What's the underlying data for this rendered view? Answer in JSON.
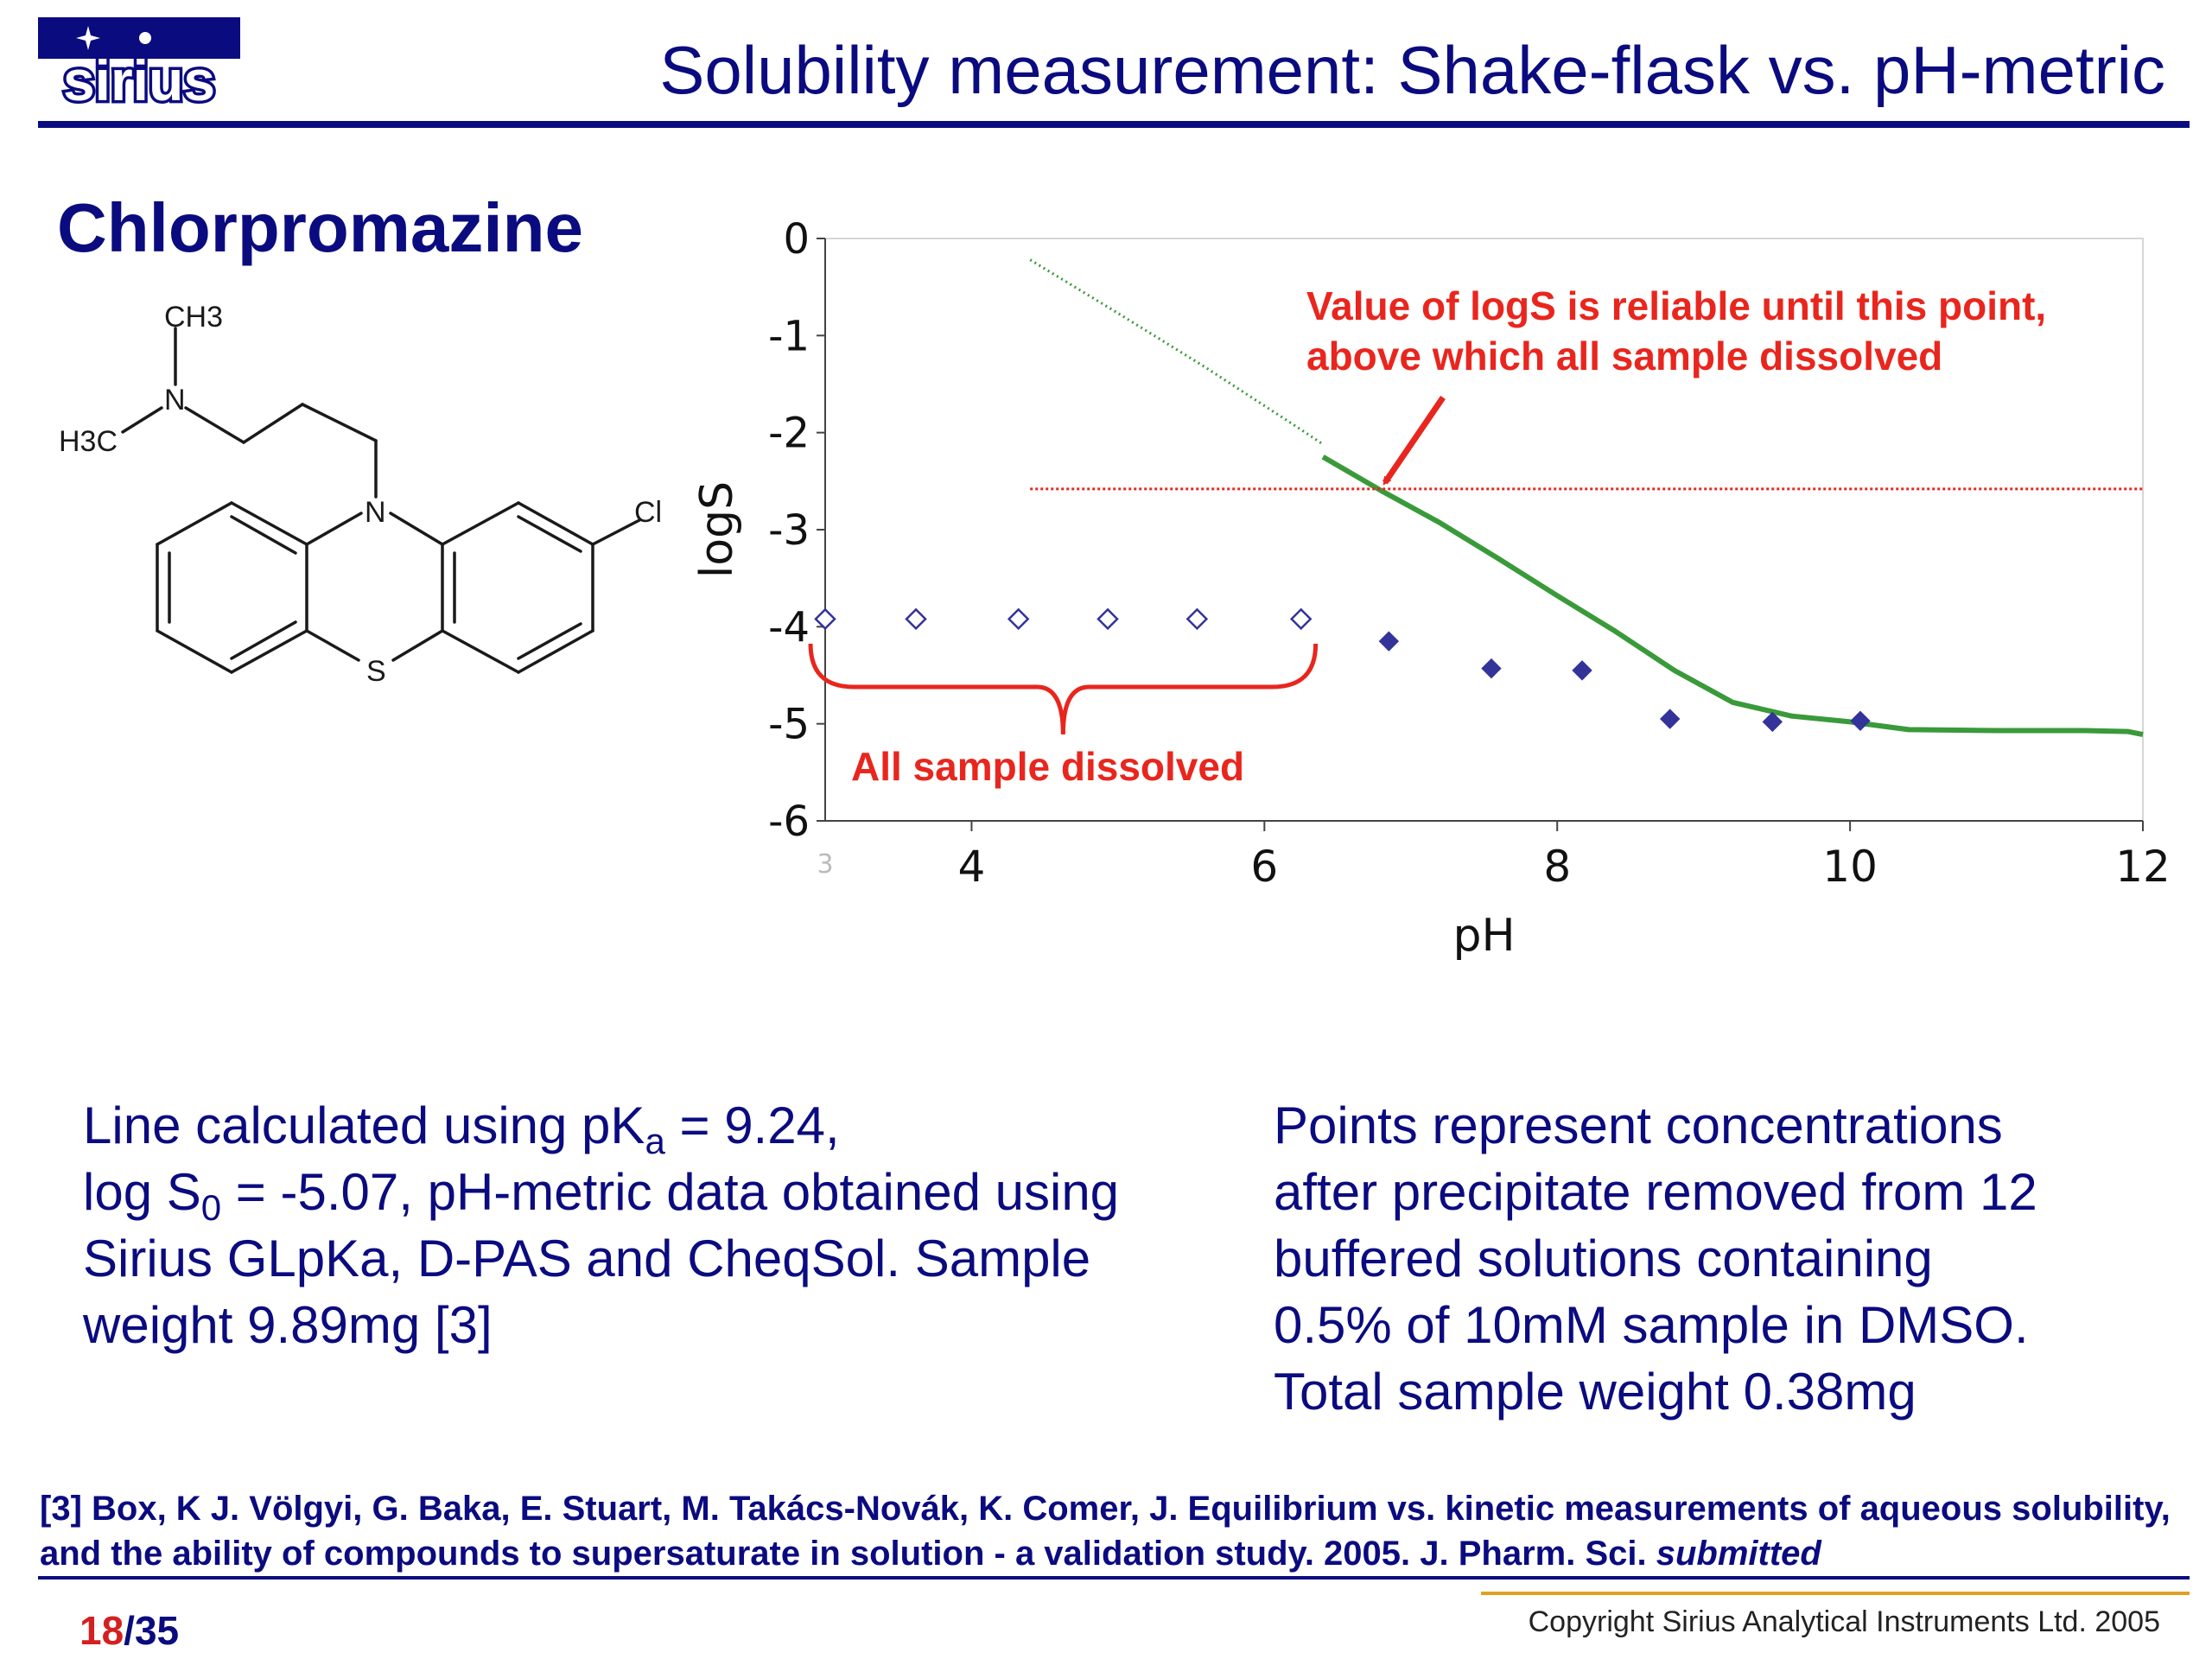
{
  "slide": {
    "logo_text": "sirius",
    "title": "Solubility measurement: Shake-flask vs. pH-metric",
    "compound": "Chlorpromazine",
    "caption_left": [
      {
        "before": "Line calculated using pK",
        "sub": "a",
        "after": " = 9.24,"
      },
      {
        "before": "log S",
        "sub": "0",
        "after": " = -5.07, pH-metric data obtained using"
      },
      {
        "before": "Sirius GLpKa, D-PAS and CheqSol. Sample",
        "sub": "",
        "after": ""
      },
      {
        "before": "weight 9.89mg [3]",
        "sub": "",
        "after": ""
      }
    ],
    "caption_right": [
      "Points represent concentrations",
      "after precipitate removed from 12",
      "buffered solutions containing",
      "0.5% of 10mM sample in DMSO.",
      "Total sample weight 0.38mg"
    ],
    "reference": {
      "main": "[3] Box, K J. Völgyi, G. Baka, E. Stuart, M. Takács-Novák, K. Comer, J. Equilibrium vs. kinetic measurements of aqueous solubility, and the ability of compounds to supersaturate in solution - a validation study.  2005. J. Pharm. Sci. ",
      "italic": "submitted"
    },
    "page": {
      "current": "18",
      "total": "/35"
    },
    "copyright": "Copyright Sirius Analytical Instruments Ltd. 2005",
    "colors": {
      "navy": "#0b0b80",
      "red": "#e8261e",
      "green": "#3a9a3a",
      "marker": "#33339a"
    }
  },
  "molecule_labels": {
    "ch3_top": "CH3",
    "n_amine": "N",
    "h3c": "H3C",
    "n_ring": "N",
    "s_ring": "S",
    "cl": "Cl"
  },
  "chart_data": {
    "type": "scatter",
    "xlabel": "pH",
    "ylabel": "logS",
    "xlim": [
      3,
      12
    ],
    "ylim": [
      -6,
      0
    ],
    "x_ticks": [
      4,
      6,
      8,
      10,
      12
    ],
    "x_ticks_faint": [
      3
    ],
    "y_ticks": [
      0,
      -1,
      -2,
      -3,
      -4,
      -5,
      -6
    ],
    "grid": false,
    "series": [
      {
        "style": "open-diamond",
        "x": [
          3.0,
          3.62,
          4.32,
          4.93,
          5.54,
          6.25
        ],
        "y": [
          -3.92,
          -3.92,
          -3.92,
          -3.92,
          -3.92,
          -3.92
        ]
      },
      {
        "style": "filled-diamond",
        "x": [
          6.85,
          7.55,
          8.17,
          8.77,
          9.47,
          10.07
        ],
        "y": [
          -4.15,
          -4.43,
          -4.45,
          -4.95,
          -4.98,
          -4.97
        ]
      }
    ],
    "lines": [
      {
        "style": "green-dotted",
        "x": [
          4.4,
          5.0,
          5.6,
          6.2,
          6.4
        ],
        "y": [
          -0.22,
          -0.77,
          -1.33,
          -1.92,
          -2.12
        ]
      },
      {
        "style": "green-solid",
        "x": [
          6.4,
          6.8,
          7.2,
          7.6,
          8.0,
          8.4,
          8.8,
          9.2,
          9.6,
          10.0,
          10.4,
          11.0,
          11.6,
          11.9,
          12.0
        ],
        "y": [
          -2.25,
          -2.6,
          -2.93,
          -3.3,
          -3.68,
          -4.05,
          -4.45,
          -4.78,
          -4.92,
          -4.98,
          -5.06,
          -5.07,
          -5.07,
          -5.08,
          -5.11
        ]
      },
      {
        "style": "red-dotted",
        "x": [
          4.4,
          12.0
        ],
        "y": [
          -2.58,
          -2.58
        ]
      }
    ],
    "annotations": [
      {
        "text_lines": [
          "Value of logS is reliable until this point,",
          "above which all sample dissolved"
        ],
        "arrow_to": {
          "x": 6.8,
          "y": -2.55
        }
      },
      {
        "text": "All sample dissolved",
        "brace_from_x": 2.9,
        "brace_to_x": 6.35
      }
    ]
  }
}
